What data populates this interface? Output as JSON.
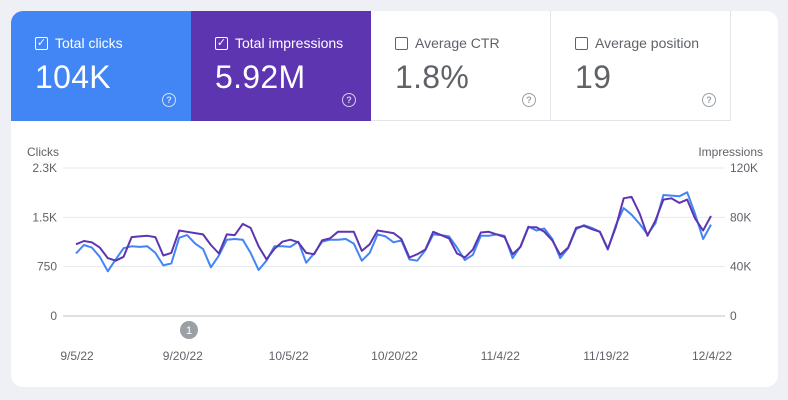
{
  "metrics": [
    {
      "label": "Total clicks",
      "value": "104K",
      "checked": true,
      "color": "#4285f4"
    },
    {
      "label": "Total impressions",
      "value": "5.92M",
      "checked": true,
      "color": "#5e35b1"
    },
    {
      "label": "Average CTR",
      "value": "1.8%",
      "checked": false,
      "color": "#ffffff"
    },
    {
      "label": "Average position",
      "value": "19",
      "checked": false,
      "color": "#ffffff"
    }
  ],
  "help_glyph": "?",
  "chart_data": {
    "type": "line",
    "left_axis_title": "Clicks",
    "right_axis_title": "Impressions",
    "left_ticks": [
      "2.3K",
      "1.5K",
      "750",
      "0"
    ],
    "right_ticks": [
      "120K",
      "80K",
      "40K",
      "0"
    ],
    "left_range": [
      0,
      2250
    ],
    "right_range": [
      0,
      120000
    ],
    "x_labels": [
      "9/5/22",
      "9/20/22",
      "10/5/22",
      "10/20/22",
      "11/4/22",
      "11/19/22",
      "12/4/22"
    ],
    "annotation": "1",
    "grid": true,
    "series": [
      {
        "name": "Clicks",
        "axis": "left",
        "color": "#4285f4",
        "values": [
          950,
          1080,
          1040,
          900,
          680,
          860,
          1030,
          1060,
          1050,
          1060,
          960,
          770,
          800,
          1190,
          1230,
          1100,
          1020,
          740,
          920,
          1160,
          1170,
          1160,
          960,
          700,
          840,
          1060,
          1060,
          1050,
          1130,
          810,
          950,
          1130,
          1160,
          1160,
          1170,
          1100,
          840,
          960,
          1240,
          1210,
          1120,
          1150,
          860,
          840,
          1000,
          1240,
          1230,
          1210,
          1040,
          850,
          930,
          1220,
          1220,
          1240,
          1220,
          880,
          1060,
          1360,
          1300,
          1330,
          1170,
          880,
          1030,
          1320,
          1380,
          1340,
          1280,
          1010,
          1380,
          1640,
          1540,
          1400,
          1240,
          1410,
          1840,
          1830,
          1820,
          1880,
          1550,
          1170,
          1390
        ]
      },
      {
        "name": "Impressions",
        "axis": "left",
        "color": "#5e35b1",
        "values": [
          1090,
          1140,
          1120,
          1040,
          880,
          840,
          900,
          1200,
          1210,
          1220,
          1200,
          920,
          960,
          1300,
          1280,
          1260,
          1240,
          1080,
          950,
          1240,
          1230,
          1400,
          1340,
          1060,
          860,
          1020,
          1130,
          1160,
          1120,
          960,
          940,
          1150,
          1180,
          1280,
          1280,
          1280,
          990,
          1090,
          1300,
          1280,
          1260,
          1170,
          890,
          940,
          1010,
          1280,
          1230,
          1180,
          950,
          890,
          1010,
          1270,
          1280,
          1240,
          1200,
          940,
          1050,
          1350,
          1350,
          1280,
          1150,
          930,
          1040,
          1340,
          1370,
          1320,
          1280,
          1020,
          1350,
          1790,
          1810,
          1560,
          1220,
          1450,
          1770,
          1790,
          1720,
          1770,
          1480,
          1300,
          1520
        ]
      }
    ]
  }
}
